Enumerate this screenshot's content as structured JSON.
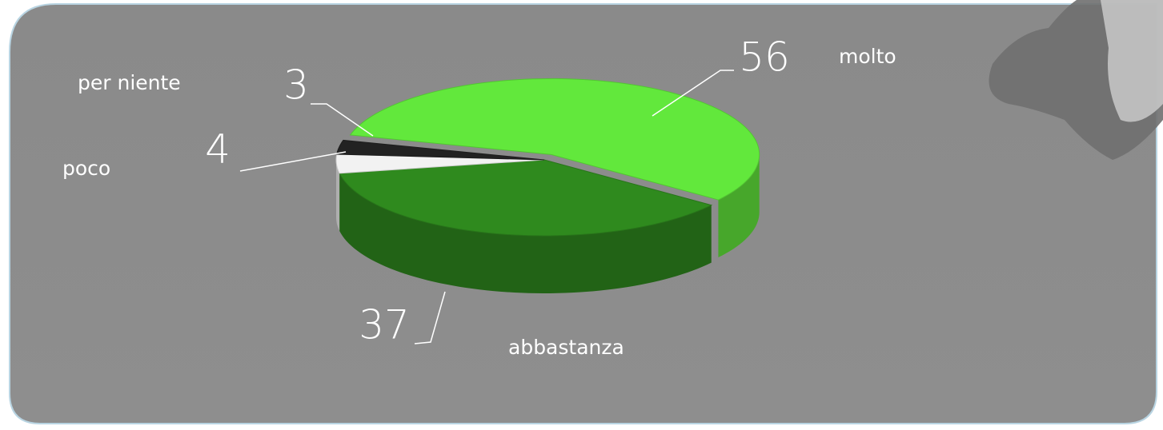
{
  "chart_data": {
    "type": "pie",
    "categories": [
      "molto",
      "abbastanza",
      "poco",
      "per niente"
    ],
    "values": [
      56,
      37,
      4,
      3
    ],
    "colors": [
      "#62e83c",
      "#2f8a1e",
      "#f2f2f2",
      "#222222"
    ]
  }
}
